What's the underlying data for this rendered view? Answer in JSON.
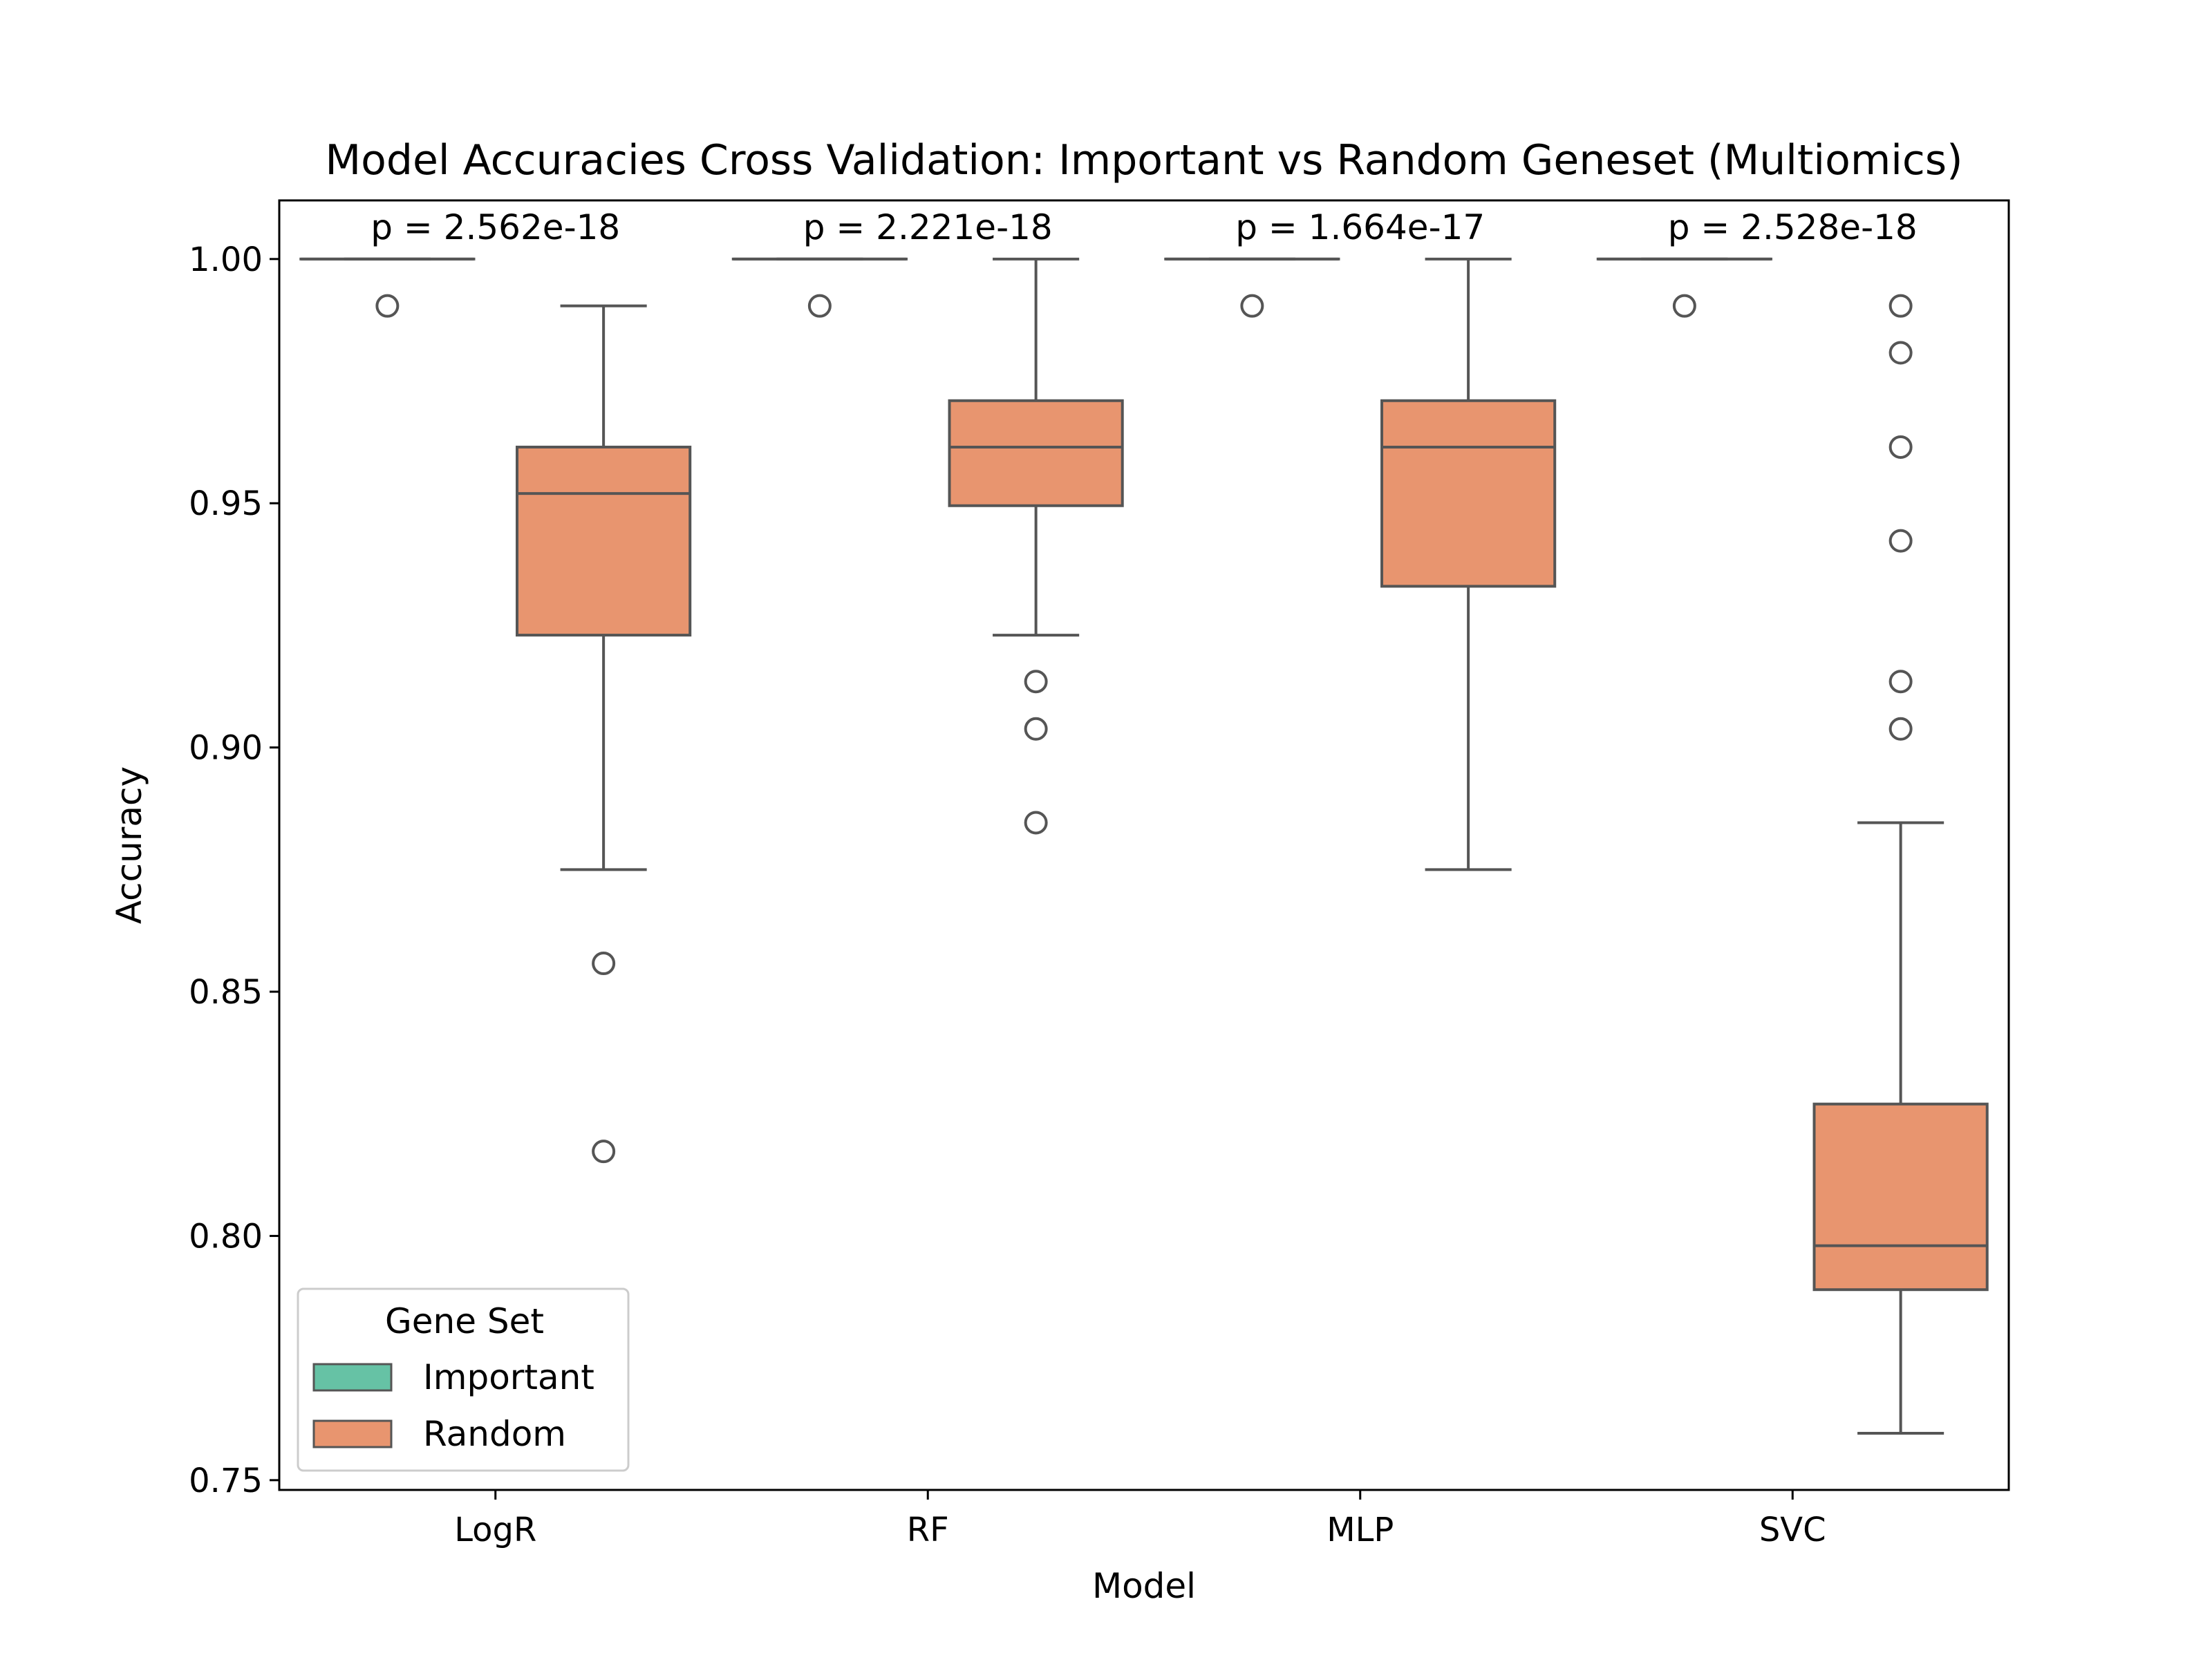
{
  "chart_data": {
    "type": "box",
    "title": "Model Accuracies Cross Validation: Important vs Random Geneset (Multiomics)",
    "xlabel": "Model",
    "ylabel": "Accuracy",
    "categories": [
      "LogR",
      "RF",
      "MLP",
      "SVC"
    ],
    "ylim": [
      0.748,
      1.012
    ],
    "yticks": [
      0.75,
      0.8,
      0.85,
      0.9,
      0.95,
      1.0
    ],
    "ytick_labels": [
      "0.75",
      "0.80",
      "0.85",
      "0.90",
      "0.95",
      "1.00"
    ],
    "grid": false,
    "legend": {
      "title": "Gene Set",
      "position": "lower-left",
      "entries": [
        "Important",
        "Random"
      ]
    },
    "colors": {
      "Important": "#66c2a5",
      "Random": "#e8956f",
      "outline": "#555555"
    },
    "series": [
      {
        "name": "Important",
        "boxes": [
          {
            "category": "LogR",
            "whisker_low": 1.0,
            "q1": 1.0,
            "median": 1.0,
            "q3": 1.0,
            "whisker_high": 1.0,
            "outliers": [
              0.9904
            ]
          },
          {
            "category": "RF",
            "whisker_low": 1.0,
            "q1": 1.0,
            "median": 1.0,
            "q3": 1.0,
            "whisker_high": 1.0,
            "outliers": [
              0.9904
            ]
          },
          {
            "category": "MLP",
            "whisker_low": 1.0,
            "q1": 1.0,
            "median": 1.0,
            "q3": 1.0,
            "whisker_high": 1.0,
            "outliers": [
              0.9904
            ]
          },
          {
            "category": "SVC",
            "whisker_low": 1.0,
            "q1": 1.0,
            "median": 1.0,
            "q3": 1.0,
            "whisker_high": 1.0,
            "outliers": [
              0.9904
            ]
          }
        ]
      },
      {
        "name": "Random",
        "boxes": [
          {
            "category": "LogR",
            "whisker_low": 0.875,
            "q1": 0.923,
            "median": 0.952,
            "q3": 0.9615,
            "whisker_high": 0.9904,
            "outliers": [
              0.8558,
              0.8173
            ]
          },
          {
            "category": "RF",
            "whisker_low": 0.923,
            "q1": 0.9495,
            "median": 0.9615,
            "q3": 0.971,
            "whisker_high": 1.0,
            "outliers": [
              0.9135,
              0.9038,
              0.8846
            ]
          },
          {
            "category": "MLP",
            "whisker_low": 0.875,
            "q1": 0.933,
            "median": 0.9615,
            "q3": 0.971,
            "whisker_high": 1.0,
            "outliers": []
          },
          {
            "category": "SVC",
            "whisker_low": 0.7596,
            "q1": 0.789,
            "median": 0.798,
            "q3": 0.827,
            "whisker_high": 0.8846,
            "outliers": [
              0.9904,
              0.9808,
              0.9615,
              0.9423,
              0.9135,
              0.9038
            ]
          }
        ]
      }
    ],
    "annotations": [
      {
        "category": "LogR",
        "text": "p = 2.562e-18"
      },
      {
        "category": "RF",
        "text": "p = 2.221e-18"
      },
      {
        "category": "MLP",
        "text": "p = 1.664e-17"
      },
      {
        "category": "SVC",
        "text": "p = 2.528e-18"
      }
    ]
  }
}
